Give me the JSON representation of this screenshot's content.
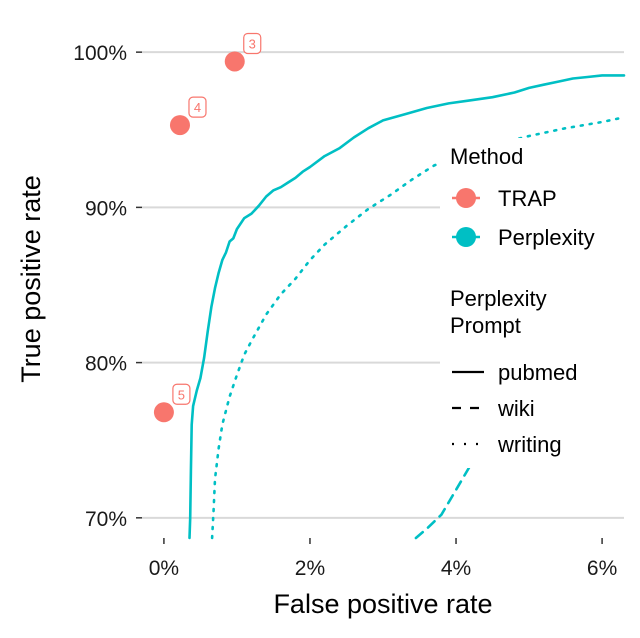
{
  "chart_data": {
    "type": "line",
    "xlabel": "False positive rate",
    "ylabel": "True positive rate",
    "xlim": [
      -0.3,
      6.3
    ],
    "ylim": [
      68.7,
      102.2
    ],
    "x_ticks": [
      0,
      2,
      4,
      6
    ],
    "x_tick_labels": [
      "0%",
      "2%",
      "4%",
      "6%"
    ],
    "y_ticks": [
      70,
      80,
      90,
      100
    ],
    "y_tick_labels": [
      "70%",
      "80%",
      "90%",
      "100%"
    ],
    "grid": "horizontal major",
    "legend": {
      "placement": "right",
      "method_title": "Method",
      "method_entries": [
        {
          "label": "TRAP",
          "color": "#F8766D"
        },
        {
          "label": "Perplexity",
          "color": "#00BFC4"
        }
      ],
      "prompt_title_lines": [
        "Perplexity",
        "Prompt"
      ],
      "prompt_entries": [
        {
          "label": "pubmed",
          "linetype": "solid"
        },
        {
          "label": "wiki",
          "linetype": "dashed"
        },
        {
          "label": "writing",
          "linetype": "dotted"
        }
      ]
    },
    "series": [
      {
        "name": "TRAP",
        "type": "scatter",
        "color": "#F8766D",
        "points": [
          {
            "x": 0.97,
            "y": 99.4,
            "label": "3"
          },
          {
            "x": 0.22,
            "y": 95.3,
            "label": "4"
          },
          {
            "x": 0.0,
            "y": 76.8,
            "label": "5"
          }
        ]
      },
      {
        "name": "pubmed",
        "type": "line",
        "linetype": "solid",
        "color": "#00BFC4",
        "x": [
          0.35,
          0.36,
          0.37,
          0.38,
          0.4,
          0.45,
          0.5,
          0.55,
          0.6,
          0.65,
          0.7,
          0.75,
          0.8,
          0.85,
          0.9,
          0.95,
          1.0,
          1.1,
          1.2,
          1.3,
          1.4,
          1.5,
          1.6,
          1.7,
          1.8,
          1.9,
          2.0,
          2.2,
          2.4,
          2.6,
          2.8,
          3.0,
          3.3,
          3.6,
          3.9,
          4.2,
          4.5,
          4.8,
          5.0,
          5.2,
          5.4,
          5.6,
          5.8,
          6.0,
          6.3
        ],
        "y": [
          68.7,
          70.0,
          73.0,
          76.0,
          77.2,
          78.2,
          79.0,
          80.3,
          82.0,
          83.6,
          84.8,
          85.8,
          86.6,
          87.1,
          87.8,
          88.0,
          88.6,
          89.3,
          89.6,
          90.1,
          90.7,
          91.1,
          91.3,
          91.6,
          91.9,
          92.3,
          92.6,
          93.3,
          93.8,
          94.5,
          95.1,
          95.6,
          96.0,
          96.4,
          96.7,
          96.9,
          97.1,
          97.4,
          97.7,
          97.9,
          98.1,
          98.3,
          98.4,
          98.5,
          98.5
        ]
      },
      {
        "name": "writing",
        "type": "line",
        "linetype": "dotted",
        "color": "#00BFC4",
        "x": [
          0.66,
          0.68,
          0.7,
          0.75,
          0.8,
          0.9,
          1.0,
          1.1,
          1.2,
          1.4,
          1.6,
          1.8,
          2.0,
          2.2,
          2.5,
          2.8,
          3.1,
          3.4,
          3.7,
          4.0,
          4.5,
          5.0,
          5.5,
          6.0,
          6.3
        ],
        "y": [
          68.7,
          70.5,
          72.5,
          74.5,
          76.0,
          77.8,
          79.2,
          80.5,
          81.4,
          83.1,
          84.4,
          85.4,
          86.6,
          87.6,
          88.8,
          89.9,
          90.8,
          91.8,
          92.7,
          93.3,
          94.0,
          94.6,
          95.1,
          95.5,
          95.8
        ]
      },
      {
        "name": "wiki",
        "type": "line",
        "linetype": "dashed",
        "color": "#00BFC4",
        "x": [
          3.45,
          3.6,
          3.8,
          4.0,
          4.2,
          4.4,
          4.6,
          4.8,
          5.0,
          5.2,
          5.4,
          5.6,
          5.8,
          6.0,
          6.2,
          6.3
        ],
        "y": [
          68.7,
          69.3,
          70.2,
          71.8,
          73.4,
          75.0,
          76.7,
          78.5,
          80.1,
          81.1,
          82.2,
          83.0,
          83.7,
          84.5,
          85.4,
          86.0
        ]
      }
    ]
  }
}
